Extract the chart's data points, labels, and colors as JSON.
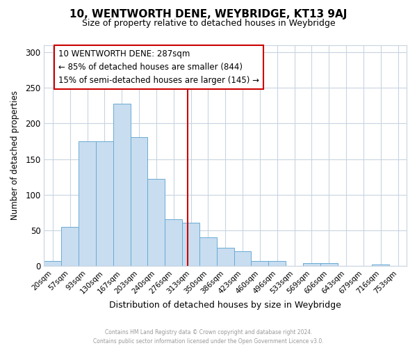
{
  "title": "10, WENTWORTH DENE, WEYBRIDGE, KT13 9AJ",
  "subtitle": "Size of property relative to detached houses in Weybridge",
  "xlabel": "Distribution of detached houses by size in Weybridge",
  "ylabel": "Number of detached properties",
  "bar_labels": [
    "20sqm",
    "57sqm",
    "93sqm",
    "130sqm",
    "167sqm",
    "203sqm",
    "240sqm",
    "276sqm",
    "313sqm",
    "350sqm",
    "386sqm",
    "423sqm",
    "460sqm",
    "496sqm",
    "533sqm",
    "569sqm",
    "606sqm",
    "643sqm",
    "679sqm",
    "716sqm",
    "753sqm"
  ],
  "bar_values": [
    7,
    55,
    175,
    175,
    228,
    181,
    122,
    65,
    61,
    40,
    25,
    20,
    7,
    7,
    0,
    4,
    4,
    0,
    0,
    2,
    0
  ],
  "bar_color": "#c8ddf0",
  "bar_edge_color": "#6aaad4",
  "vline_color": "#cc0000",
  "annotation_line1": "10 WENTWORTH DENE: 287sqm",
  "annotation_line2": "← 85% of detached houses are smaller (844)",
  "annotation_line3": "15% of semi-detached houses are larger (145) →",
  "ylim": [
    0,
    310
  ],
  "yticks": [
    0,
    50,
    100,
    150,
    200,
    250,
    300
  ],
  "footer_line1": "Contains HM Land Registry data © Crown copyright and database right 2024.",
  "footer_line2": "Contains public sector information licensed under the Open Government Licence v3.0.",
  "bg_color": "#ffffff",
  "grid_color": "#c8d4e0"
}
